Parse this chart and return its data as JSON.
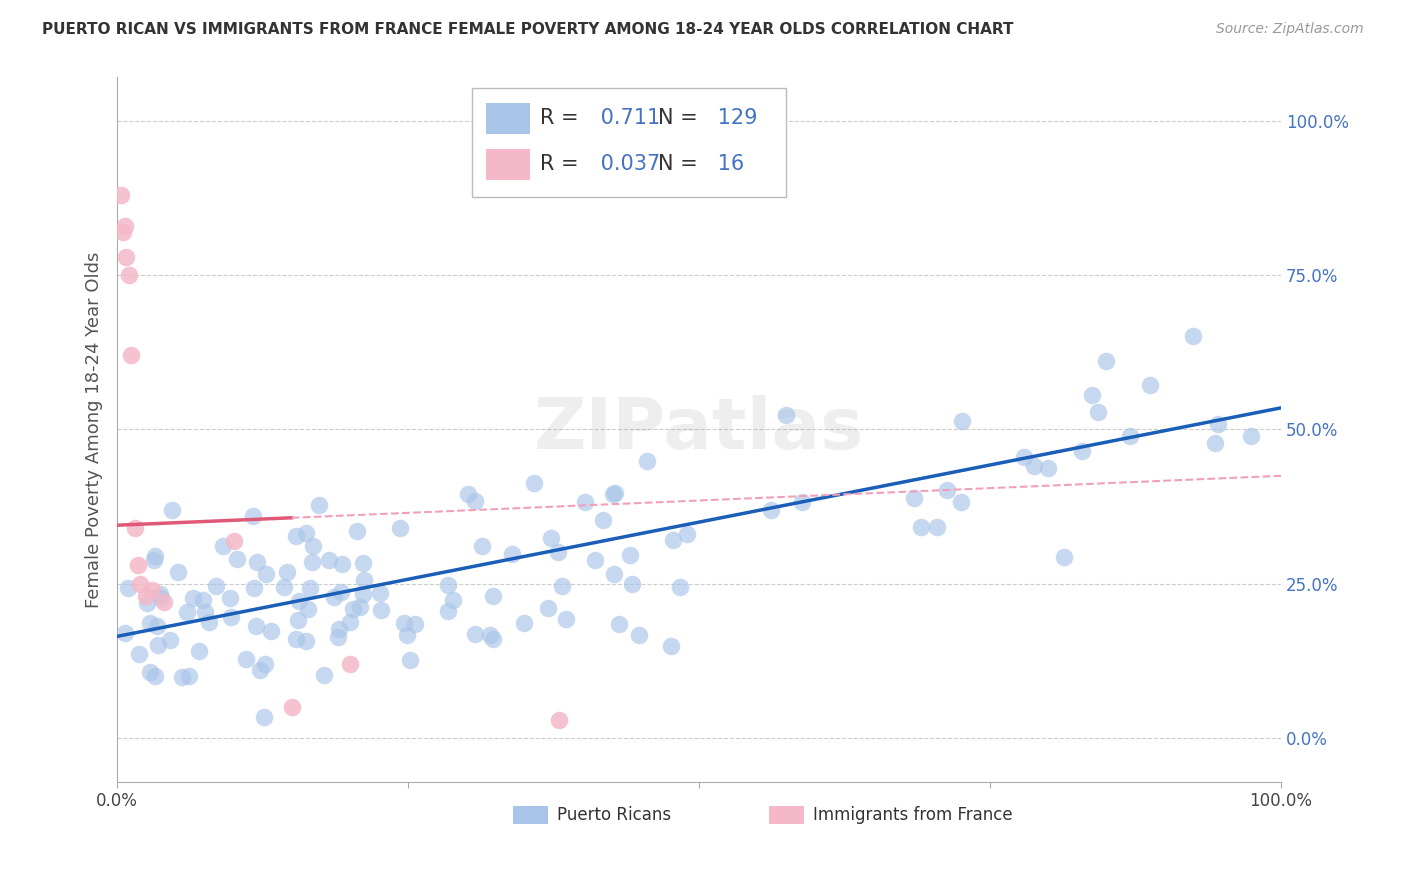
{
  "title": "PUERTO RICAN VS IMMIGRANTS FROM FRANCE FEMALE POVERTY AMONG 18-24 YEAR OLDS CORRELATION CHART",
  "source": "Source: ZipAtlas.com",
  "ylabel": "Female Poverty Among 18-24 Year Olds",
  "blue_R": 0.711,
  "blue_N": 129,
  "pink_R": 0.037,
  "pink_N": 16,
  "blue_color": "#a8c4e8",
  "pink_color": "#f4b8c8",
  "blue_line_color": "#1a5eb8",
  "pink_line_color": "#e05878",
  "pink_dash_color": "#f0a0b8",
  "grid_color": "#cccccc",
  "legend_label_blue": "Puerto Ricans",
  "legend_label_pink": "Immigrants from France",
  "xlim": [
    0,
    1
  ],
  "ylim": [
    -0.07,
    1.07
  ],
  "blue_line_y_intercept": 0.165,
  "blue_line_slope": 0.37,
  "pink_line_y_intercept": 0.345,
  "pink_line_slope": 0.08,
  "ytick_vals": [
    0.0,
    0.25,
    0.5,
    0.75,
    1.0
  ],
  "ytick_labels": [
    "0.0%",
    "25.0%",
    "50.0%",
    "75.0%",
    "100.0%"
  ],
  "xtick_vals": [
    0.0,
    0.25,
    0.5,
    0.75,
    1.0
  ],
  "xtick_labels": [
    "0.0%",
    "",
    "",
    "",
    "100.0%"
  ]
}
